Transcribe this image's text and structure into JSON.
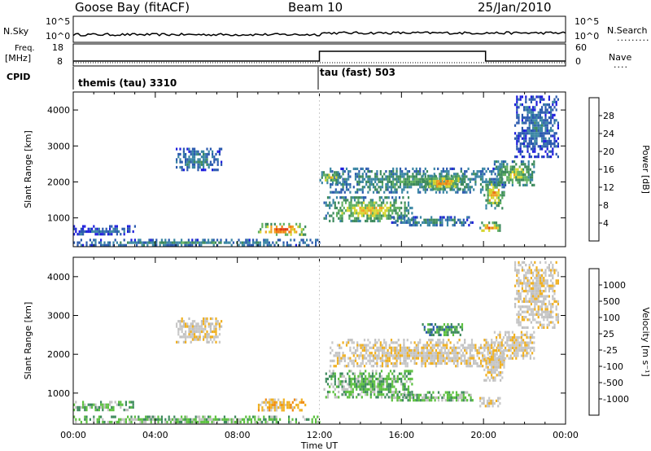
{
  "header": {
    "station": "Goose Bay (fitACF)",
    "beam": "Beam 10",
    "date": "25/Jan/2010"
  },
  "panels": {
    "nsky_label": "N.Sky",
    "nsky_ticks": [
      "10^5",
      "10^0"
    ],
    "nsearch_label": "N.Search",
    "nsearch_ticks": [
      "10^5",
      "10^0"
    ],
    "freq_label_1": "Freq.",
    "freq_label_2": "[MHz]",
    "freq_ticks": [
      "18",
      "8"
    ],
    "nave_label": "Nave",
    "nave_ticks": [
      "60",
      "0"
    ],
    "cpid_label": "CPID",
    "cpid_1": "themis (tau) 3310",
    "cpid_2": "tau (fast) 503"
  },
  "colors": {
    "power": [
      "#1d1ddc",
      "#2b5aae",
      "#3a86a4",
      "#3d8a5c",
      "#60b060",
      "#d6d630",
      "#f0a020",
      "#f07a10",
      "#e03a10",
      "#d81010"
    ],
    "velocity": [
      "#1d1ddc",
      "#2b5aae",
      "#3d8a5c",
      "#5cc040",
      "#c0c0c0",
      "#c8c8c8",
      "#f0b020",
      "#f08a10",
      "#f04010",
      "#e01010"
    ],
    "velocity_ground": "#bfbfbf"
  },
  "chart_data": [
    {
      "type": "heatmap",
      "name_role": "power",
      "ylabel": "Slant Range [km]",
      "yticks": [
        "1000",
        "2000",
        "3000",
        "4000"
      ],
      "ylim": [
        200,
        4500
      ],
      "xlim": [
        0,
        24
      ],
      "colorbar_label": "Power [dB]",
      "colorbar_ticks": [
        "4",
        "8",
        "12",
        "16",
        "20",
        "24",
        "28"
      ],
      "colorbar_range": [
        0,
        30
      ],
      "regions": [
        {
          "t0": 0.0,
          "t1": 12.0,
          "r0": 250,
          "r1": 420,
          "v": 10
        },
        {
          "t0": 0.0,
          "t1": 3.0,
          "r0": 550,
          "r1": 800,
          "v": 6
        },
        {
          "t0": 9.0,
          "t1": 11.3,
          "r0": 560,
          "r1": 860,
          "v": 26
        },
        {
          "t0": 5.0,
          "t1": 7.2,
          "r0": 2300,
          "r1": 2950,
          "v": 9
        },
        {
          "t0": 12.2,
          "t1": 16.5,
          "r0": 900,
          "r1": 1600,
          "v": 18
        },
        {
          "t0": 12.5,
          "t1": 21.0,
          "r0": 1700,
          "r1": 2400,
          "v": 12
        },
        {
          "t0": 17.0,
          "t1": 19.0,
          "r0": 1800,
          "r1": 2200,
          "v": 22
        },
        {
          "t0": 15.5,
          "t1": 19.5,
          "r0": 800,
          "r1": 1050,
          "v": 10
        },
        {
          "t0": 19.8,
          "t1": 20.8,
          "r0": 650,
          "r1": 900,
          "v": 24
        },
        {
          "t0": 20.0,
          "t1": 21.0,
          "r0": 1300,
          "r1": 2100,
          "v": 20
        },
        {
          "t0": 20.5,
          "t1": 22.5,
          "r0": 1900,
          "r1": 2600,
          "v": 16
        },
        {
          "t0": 21.5,
          "t1": 23.6,
          "r0": 2700,
          "r1": 4400,
          "v": 7
        },
        {
          "t0": 12.0,
          "t1": 13.0,
          "r0": 2000,
          "r1": 2300,
          "v": 18
        }
      ]
    },
    {
      "type": "heatmap",
      "name_role": "velocity",
      "ylabel": "Slant Range [km]",
      "yticks": [
        "1000",
        "2000",
        "3000",
        "4000"
      ],
      "ylim": [
        200,
        4500
      ],
      "xlim": [
        0,
        24
      ],
      "xticks": [
        "00:00",
        "04:00",
        "08:00",
        "12:00",
        "16:00",
        "20:00",
        "00:00"
      ],
      "xlabel": "Time UT",
      "colorbar_label": "Velocity [m s⁻¹]",
      "colorbar_ticks": [
        "1000",
        "500",
        "100",
        "25",
        "-25",
        "-100",
        "-500",
        "-1000"
      ],
      "regions": [
        {
          "t0": 0.0,
          "t1": 12.0,
          "r0": 250,
          "r1": 420,
          "v": 3
        },
        {
          "t0": 0.0,
          "t1": 3.0,
          "r0": 550,
          "r1": 800,
          "v": 3
        },
        {
          "t0": 9.0,
          "t1": 11.3,
          "r0": 560,
          "r1": 860,
          "v": 6
        },
        {
          "t0": 5.0,
          "t1": 7.2,
          "r0": 2300,
          "r1": 2950,
          "v": 5
        },
        {
          "t0": 12.2,
          "t1": 16.5,
          "r0": 900,
          "r1": 1600,
          "v": 3
        },
        {
          "t0": 12.5,
          "t1": 21.0,
          "r0": 1700,
          "r1": 2400,
          "v": 5
        },
        {
          "t0": 15.5,
          "t1": 19.5,
          "r0": 800,
          "r1": 1050,
          "v": 3
        },
        {
          "t0": 19.8,
          "t1": 20.8,
          "r0": 650,
          "r1": 900,
          "v": 5
        },
        {
          "t0": 20.0,
          "t1": 21.0,
          "r0": 1300,
          "r1": 2100,
          "v": 5
        },
        {
          "t0": 20.5,
          "t1": 22.5,
          "r0": 1900,
          "r1": 2600,
          "v": 5
        },
        {
          "t0": 21.5,
          "t1": 23.6,
          "r0": 2700,
          "r1": 4400,
          "v": 5
        },
        {
          "t0": 17.0,
          "t1": 19.0,
          "r0": 2500,
          "r1": 2800,
          "v": 2
        }
      ]
    }
  ]
}
